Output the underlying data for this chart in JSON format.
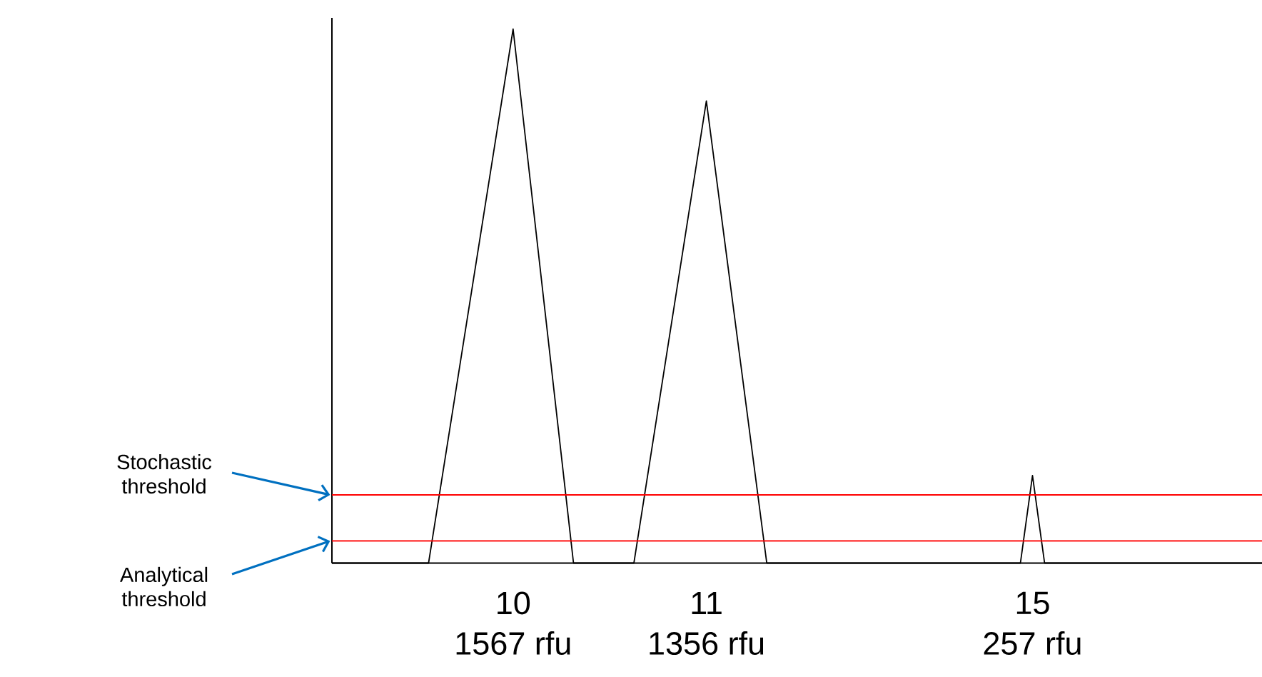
{
  "chart_data": {
    "type": "line",
    "categories": [
      null,
      null,
      null,
      null,
      null,
      null,
      null,
      null,
      null,
      null,
      null,
      null,
      null,
      null,
      null,
      "10",
      null,
      null,
      null,
      null,
      null,
      null,
      null,
      null,
      null,
      null,
      null,
      null,
      null,
      null,
      null,
      "11",
      null,
      null,
      null,
      null,
      null,
      null,
      null,
      null,
      null,
      null,
      null,
      null,
      null,
      null,
      null,
      null,
      null,
      null,
      null,
      null,
      null,
      null,
      null,
      null,
      null,
      null,
      "15",
      null,
      null,
      null,
      null,
      null,
      null,
      null,
      null,
      null,
      null,
      null,
      null,
      null,
      null,
      null,
      null,
      null,
      null,
      null
    ],
    "values": [
      0,
      0,
      0,
      0,
      0,
      0,
      0,
      0,
      0,
      null,
      null,
      null,
      null,
      null,
      null,
      1567,
      null,
      null,
      null,
      null,
      0,
      0,
      0,
      0,
      0,
      0,
      null,
      null,
      null,
      null,
      null,
      1356,
      null,
      null,
      null,
      null,
      0,
      0,
      0,
      0,
      0,
      0,
      0,
      0,
      0,
      0,
      0,
      0,
      0,
      0,
      0,
      0,
      0,
      0,
      0,
      0,
      0,
      0,
      257,
      0,
      0,
      0,
      0,
      0,
      0,
      0,
      0,
      0,
      0,
      0,
      0,
      0,
      0,
      0,
      0,
      0,
      0,
      0
    ],
    "value_labels": [
      null,
      null,
      null,
      null,
      null,
      null,
      null,
      null,
      null,
      null,
      null,
      null,
      null,
      null,
      null,
      "1567 rfu",
      null,
      null,
      null,
      null,
      null,
      null,
      null,
      null,
      null,
      null,
      null,
      null,
      null,
      null,
      null,
      "1356 rfu",
      null,
      null,
      null,
      null,
      null,
      null,
      null,
      null,
      null,
      null,
      null,
      null,
      null,
      null,
      null,
      null,
      null,
      null,
      null,
      null,
      null,
      null,
      null,
      null,
      null,
      null,
      "257 rfu",
      null,
      null,
      null,
      null,
      null,
      null,
      null,
      null,
      null,
      null,
      null,
      null,
      null,
      null,
      null,
      null,
      null,
      null,
      null
    ],
    "color": "#000000",
    "ylim": [
      0,
      1600
    ],
    "tick_labels": "x",
    "ref_lines": [
      {
        "axis": "y",
        "value": 200,
        "label": "Stochastic threshold",
        "color": "#ff0000"
      },
      {
        "axis": "y",
        "value": 65,
        "label": "Analytical threshold",
        "color": "#ff0000"
      }
    ]
  }
}
